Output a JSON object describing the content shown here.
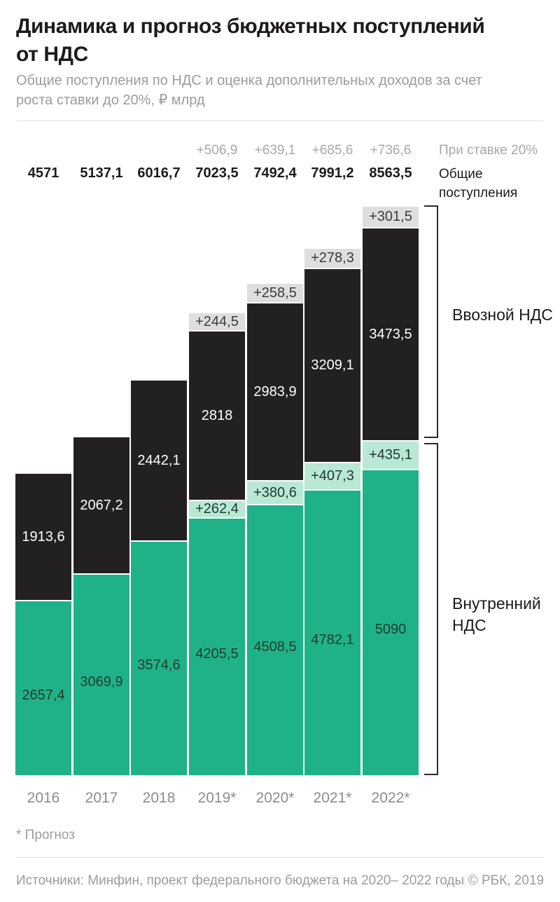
{
  "header": {
    "title_lines": [
      "Динамика и прогноз бюджетных поступлений",
      "от НДС"
    ],
    "subtitle_lines": [
      "Общие поступления по НДС и оценка дополнительных доходов за счет",
      "роста ставки до 20%, ₽ млрд"
    ]
  },
  "chart_data": {
    "type": "bar",
    "stacked": true,
    "unit": "₽ млрд",
    "title": "Динамика и прогноз бюджетных поступлений от НДС",
    "categories": [
      "2016",
      "2017",
      "2018",
      "2019*",
      "2020*",
      "2021*",
      "2022*"
    ],
    "series": [
      {
        "id": "internal",
        "name": "Внутренний НДС",
        "color": "#1fb288",
        "values": [
          2657.4,
          3069.9,
          3574.6,
          4205.5,
          4508.5,
          4782.1,
          5090
        ],
        "labels": [
          "2657,4",
          "3069,9",
          "3574,6",
          "4205,5",
          "4508,5",
          "4782,1",
          "5090"
        ]
      },
      {
        "id": "internal_add_20",
        "name": "Внутренний НДС, прирост при ставке 20%",
        "color": "#b9e8d5",
        "values": [
          null,
          null,
          null,
          262.4,
          380.6,
          407.3,
          435.1
        ],
        "labels": [
          null,
          null,
          null,
          "+262,4",
          "+380,6",
          "+407,3",
          "+435,1"
        ]
      },
      {
        "id": "import",
        "name": "Ввозной НДС",
        "color": "#232021",
        "values": [
          1913.6,
          2067.2,
          2442.1,
          2818,
          2983.9,
          3209.1,
          3473.5
        ],
        "labels": [
          "1913,6",
          "2067,2",
          "2442,1",
          "2818",
          "2983,9",
          "3209,1",
          "3473,5"
        ]
      },
      {
        "id": "import_add_20",
        "name": "Ввозной НДС, прирост при ставке 20%",
        "color": "#dedede",
        "values": [
          null,
          null,
          null,
          244.5,
          258.5,
          278.3,
          301.5
        ],
        "labels": [
          null,
          null,
          null,
          "+244,5",
          "+258,5",
          "+278,3",
          "+301,5"
        ]
      }
    ],
    "totals_row": {
      "label": "Общие поступления",
      "values": [
        4571,
        5137.1,
        6016.7,
        7023.5,
        7492.4,
        7991.2,
        8563.5
      ],
      "labels": [
        "4571",
        "5137,1",
        "6016,7",
        "7023,5",
        "7492,4",
        "7991,2",
        "8563,5"
      ]
    },
    "rate_row": {
      "label": "При ставке 20%",
      "values": [
        null,
        null,
        null,
        506.9,
        639.1,
        685.6,
        736.6
      ],
      "labels": [
        null,
        null,
        null,
        "+506,9",
        "+639,1",
        "+685,6",
        "+736,6"
      ]
    },
    "group_labels": {
      "import_vat": "Ввозной НДС",
      "internal_vat": "Внутренний НДС"
    },
    "legend_position": "right-brackets",
    "grid": false
  },
  "footnote": "* Прогноз",
  "footer": {
    "sources": "Источники: Минфин, проект федерального бюджета на 2020– 2022 годы",
    "copyright": "© РБК, 2019"
  }
}
